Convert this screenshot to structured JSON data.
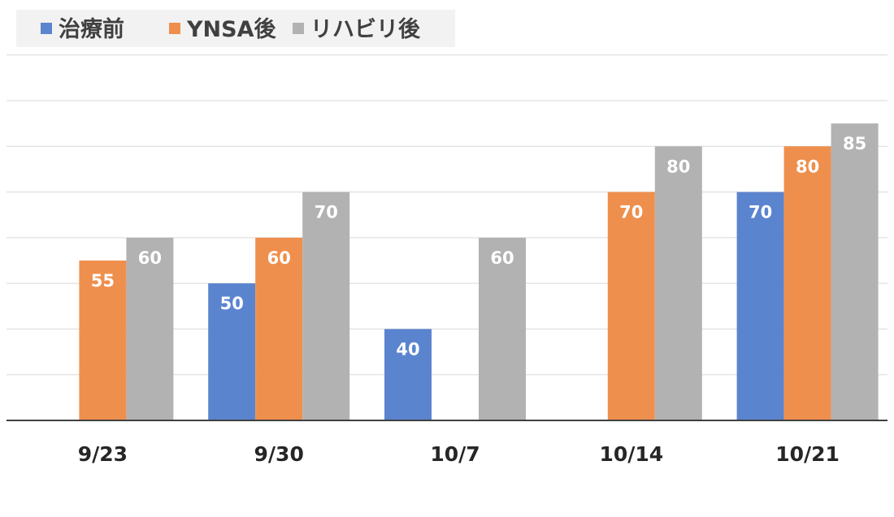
{
  "chart_data": {
    "type": "bar",
    "categories": [
      "9/23",
      "9/30",
      "10/7",
      "10/14",
      "10/21"
    ],
    "series": [
      {
        "name": "治療前",
        "color": "#5b84cf",
        "values": [
          null,
          50,
          40,
          null,
          70
        ]
      },
      {
        "name": "YNSA後",
        "color": "#ef8f4d",
        "values": [
          55,
          60,
          null,
          70,
          80
        ]
      },
      {
        "name": "リハビリ後",
        "color": "#b2b2b2",
        "values": [
          60,
          70,
          60,
          80,
          85
        ]
      }
    ],
    "ylim": [
      20,
      90
    ],
    "grid": true,
    "legend": "top-left",
    "data_labels": true,
    "colors": {
      "gridline": "#d9d9d9",
      "axis": "#404040",
      "legend_bg": "#f2f2f2"
    }
  }
}
